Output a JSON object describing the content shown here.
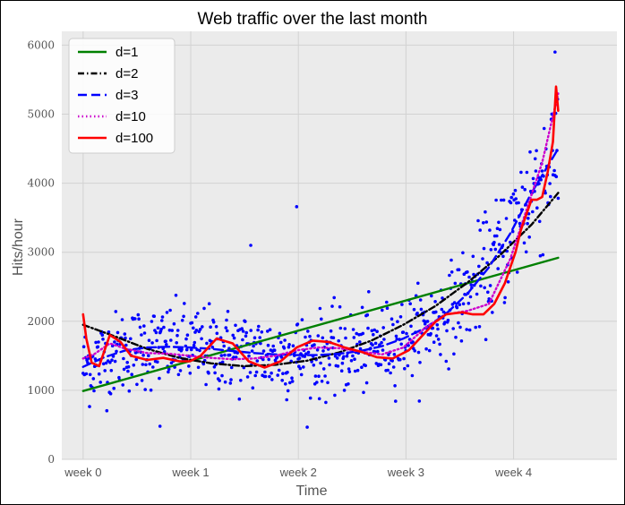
{
  "chart_data": {
    "type": "scatter",
    "title": "Web traffic over the last month",
    "xlabel": "Time",
    "ylabel": "Hits/hour",
    "xlim": [
      -200,
      5000
    ],
    "ylim": [
      0,
      6200
    ],
    "x_ticks": [
      {
        "value": 0,
        "label": "week 0"
      },
      {
        "value": 1008,
        "label": "week 1"
      },
      {
        "value": 2016,
        "label": "week 2"
      },
      {
        "value": 3024,
        "label": "week 3"
      },
      {
        "value": 4032,
        "label": "week 4"
      }
    ],
    "y_ticks": [
      0,
      1000,
      2000,
      3000,
      4000,
      5000,
      6000
    ],
    "grid": true,
    "background": "#ebebeb",
    "legend_position": "top-left",
    "scatter": {
      "color": "#0000ff",
      "n_points": 743,
      "x_range": [
        0,
        4450
      ],
      "outliers": [
        [
          720,
          480
        ],
        [
          1570,
          3100
        ],
        [
          2000,
          3660
        ],
        [
          4420,
          5900
        ]
      ]
    },
    "series": [
      {
        "name": "d=1",
        "color": "#008000",
        "style": "solid",
        "x": [
          0,
          4450
        ],
        "y": [
          990,
          2920
        ]
      },
      {
        "name": "d=2",
        "color": "#000000",
        "style": "dashdot",
        "x": [
          0,
          300,
          600,
          900,
          1200,
          1500,
          1800,
          2100,
          2400,
          2700,
          3000,
          3300,
          3600,
          3900,
          4200,
          4450
        ],
        "y": [
          1950,
          1780,
          1600,
          1470,
          1390,
          1350,
          1370,
          1430,
          1550,
          1720,
          1950,
          2220,
          2560,
          2950,
          3400,
          3860
        ]
      },
      {
        "name": "d=3",
        "color": "#0000ff",
        "style": "dashed",
        "x": [
          0,
          200,
          400,
          600,
          800,
          1000,
          1200,
          1400,
          1600,
          1800,
          2000,
          2200,
          2400,
          2600,
          2800,
          3000,
          3200,
          3400,
          3600,
          3800,
          4000,
          4200,
          4450
        ],
        "y": [
          1340,
          1480,
          1580,
          1620,
          1630,
          1620,
          1600,
          1570,
          1540,
          1520,
          1510,
          1510,
          1530,
          1570,
          1640,
          1750,
          1900,
          2110,
          2400,
          2780,
          3270,
          3860,
          4500
        ]
      },
      {
        "name": "d=10",
        "color": "#cc00cc",
        "style": "dotted",
        "x": [
          0,
          100,
          250,
          400,
          600,
          800,
          1000,
          1200,
          1400,
          1600,
          1800,
          2000,
          2200,
          2400,
          2600,
          2800,
          3000,
          3200,
          3400,
          3600,
          3800,
          4000,
          4150,
          4300,
          4450
        ],
        "y": [
          1460,
          1520,
          1680,
          1600,
          1540,
          1530,
          1500,
          1470,
          1450,
          1460,
          1500,
          1580,
          1620,
          1610,
          1560,
          1520,
          1620,
          1900,
          2100,
          2150,
          2250,
          2900,
          3600,
          4300,
          5300
        ]
      },
      {
        "name": "d=100",
        "color": "#ff0000",
        "style": "solid",
        "x": [
          0,
          30,
          80,
          150,
          250,
          350,
          450,
          600,
          750,
          900,
          1000,
          1100,
          1250,
          1400,
          1550,
          1700,
          1850,
          2000,
          2150,
          2300,
          2450,
          2600,
          2750,
          2900,
          3050,
          3200,
          3300,
          3400,
          3550,
          3650,
          3750,
          3850,
          3950,
          4050,
          4100,
          4200,
          4250,
          4300,
          4350,
          4400,
          4430,
          4450
        ],
        "y": [
          2100,
          1750,
          1400,
          1350,
          1800,
          1700,
          1500,
          1440,
          1470,
          1420,
          1420,
          1500,
          1750,
          1680,
          1420,
          1330,
          1420,
          1620,
          1720,
          1700,
          1620,
          1560,
          1480,
          1460,
          1580,
          1830,
          1990,
          2100,
          2130,
          2100,
          2100,
          2250,
          2550,
          3000,
          3320,
          3760,
          3760,
          3800,
          4150,
          4600,
          5400,
          5050
        ]
      }
    ]
  }
}
